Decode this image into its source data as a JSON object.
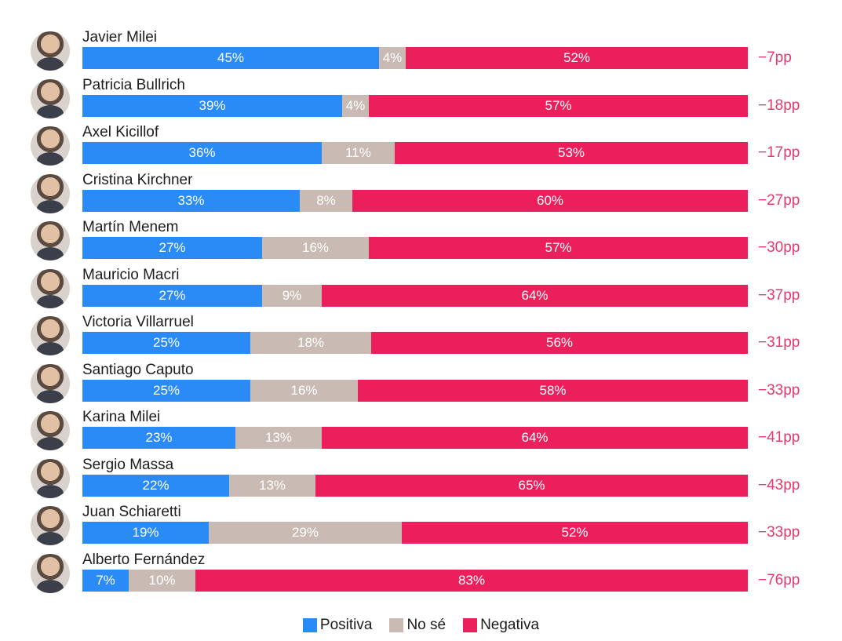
{
  "chart_data": {
    "type": "bar",
    "orientation": "horizontal",
    "stacked": true,
    "categories": [
      "Javier Milei",
      "Patricia Bullrich",
      "Axel Kicillof",
      "Cristina Kirchner",
      "Martín Menem",
      "Mauricio Macri",
      "Victoria Villarruel",
      "Santiago Caputo",
      "Karina Milei",
      "Sergio Massa",
      "Juan Schiaretti",
      "Alberto Fernández"
    ],
    "series": [
      {
        "name": "Positiva",
        "color": "#2a8af6",
        "values": [
          45,
          39,
          36,
          33,
          27,
          27,
          25,
          25,
          23,
          22,
          19,
          7
        ]
      },
      {
        "name": "No sé",
        "color": "#c9bbb3",
        "values": [
          4,
          4,
          11,
          8,
          16,
          9,
          18,
          16,
          13,
          13,
          29,
          10
        ]
      },
      {
        "name": "Negativa",
        "color": "#ea1f5b",
        "values": [
          52,
          57,
          53,
          60,
          57,
          64,
          56,
          58,
          64,
          65,
          52,
          83
        ]
      }
    ],
    "net_labels": [
      "-7pp",
      "-18pp",
      "-17pp",
      "-27pp",
      "-30pp",
      "-37pp",
      "-31pp",
      "-33pp",
      "-41pp",
      "-43pp",
      "-33pp",
      "-76pp"
    ],
    "value_suffix": "%",
    "xlim": [
      0,
      101
    ],
    "legend_position": "bottom-center"
  }
}
